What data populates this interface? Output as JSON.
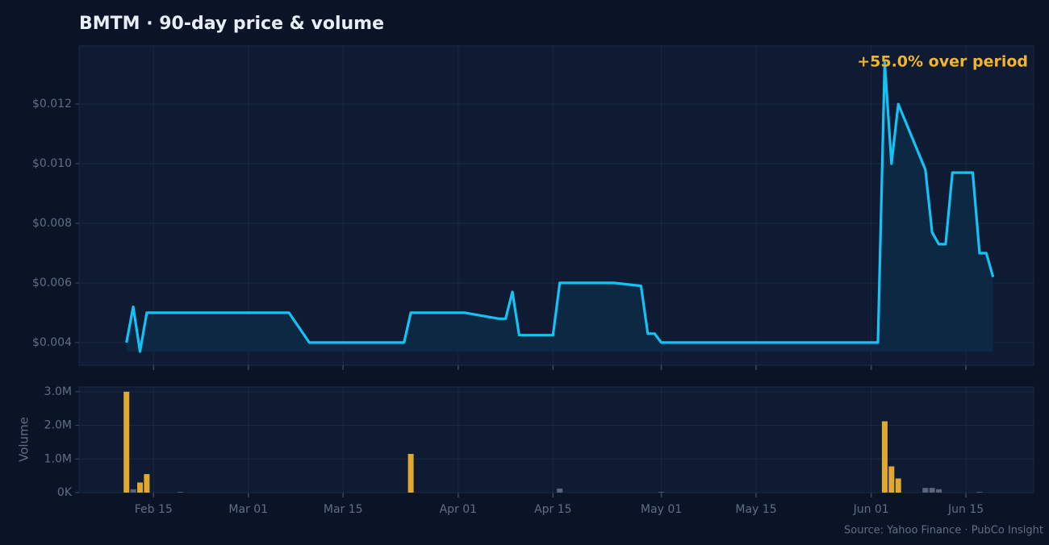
{
  "chart_data": [
    {
      "type": "line",
      "title": "BMTM  ·  90-day price & volume",
      "annotation": "+55.0% over period",
      "x": [
        "Feb 11",
        "Feb 12",
        "Feb 13",
        "Feb 14",
        "Mar 07",
        "Mar 10",
        "Mar 24",
        "Mar 25",
        "Apr 02",
        "Apr 07",
        "Apr 08",
        "Apr 09",
        "Apr 10",
        "Apr 15",
        "Apr 16",
        "Apr 24",
        "Apr 28",
        "Apr 29",
        "Apr 30",
        "May 01",
        "Jun 02",
        "Jun 03",
        "Jun 04",
        "Jun 05",
        "Jun 09",
        "Jun 10",
        "Jun 11",
        "Jun 12",
        "Jun 13",
        "Jun 16",
        "Jun 17",
        "Jun 18",
        "Jun 19"
      ],
      "values": [
        0.004,
        0.0052,
        0.0037,
        0.005,
        0.005,
        0.004,
        0.004,
        0.005,
        0.005,
        0.0048,
        0.0048,
        0.0057,
        0.00425,
        0.00425,
        0.006,
        0.006,
        0.0059,
        0.0043,
        0.0043,
        0.004,
        0.004,
        0.0134,
        0.01,
        0.012,
        0.0098,
        0.0077,
        0.0073,
        0.0073,
        0.0097,
        0.0097,
        0.007,
        0.007,
        0.0062
      ],
      "color": "#14c3f5",
      "xlim": [
        "Feb 04",
        "Jun 25"
      ],
      "ylim": [
        0.00324,
        0.01395
      ],
      "yticks": [
        {
          "value": 0.004,
          "label": "$0.004"
        },
        {
          "value": 0.006,
          "label": "$0.006"
        },
        {
          "value": 0.008,
          "label": "$0.008"
        },
        {
          "value": 0.01,
          "label": "$0.010"
        },
        {
          "value": 0.012,
          "label": "$0.012"
        }
      ],
      "grid": true
    },
    {
      "type": "bar",
      "ylabel": "Volume",
      "source": "Source: Yahoo Finance · PubCo Insight",
      "x": [
        "Feb 11",
        "Feb 12",
        "Feb 13",
        "Feb 14",
        "Feb 19",
        "Mar 25",
        "Apr 16",
        "May 01",
        "Jun 03",
        "Jun 04",
        "Jun 05",
        "Jun 09",
        "Jun 10",
        "Jun 11",
        "Jun 17"
      ],
      "values": [
        3000000,
        100000,
        300000,
        550000,
        20000,
        1150000,
        120000,
        20000,
        2120000,
        780000,
        420000,
        140000,
        140000,
        100000,
        20000
      ],
      "colors": [
        "#e0a82e",
        "#5b6579",
        "#e0a82e",
        "#e0a82e",
        "#5b6579",
        "#e0a82e",
        "#5b6579",
        "#5b6579",
        "#e0a82e",
        "#e0a82e",
        "#e0a82e",
        "#5b6579",
        "#5b6579",
        "#5b6579",
        "#5b6579"
      ],
      "xlim": [
        "Feb 04",
        "Jun 25"
      ],
      "xticks": [
        "Feb 15",
        "Mar 01",
        "Mar 15",
        "Apr 01",
        "Apr 15",
        "May 01",
        "May 15",
        "Jun 01",
        "Jun 15"
      ],
      "ylim": [
        0,
        3140000
      ],
      "yticks": [
        {
          "value": 0,
          "label": "0K"
        },
        {
          "value": 1000000,
          "label": "1.0M"
        },
        {
          "value": 2000000,
          "label": "2.0M"
        },
        {
          "value": 3000000,
          "label": "3.0M"
        }
      ],
      "grid": true
    }
  ]
}
